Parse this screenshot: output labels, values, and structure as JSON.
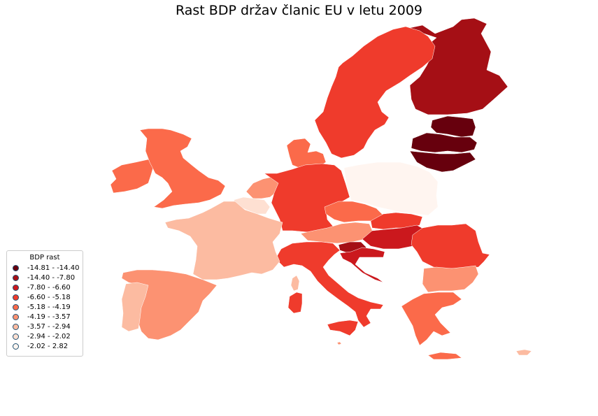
{
  "title": "Rast BDP držav članic EU v letu 2009",
  "legend": {
    "title": "BDP rast",
    "items": [
      {
        "label": "-14.81 - -14.40",
        "color": "#67000d"
      },
      {
        "label": "-14.40 - -7.80",
        "color": "#a50f15"
      },
      {
        "label": "-7.80 - -6.60",
        "color": "#cb181d"
      },
      {
        "label": "-6.60 - -5.18",
        "color": "#ef3b2c"
      },
      {
        "label": "-5.18 - -4.19",
        "color": "#fb6a4a"
      },
      {
        "label": "-4.19 - -3.57",
        "color": "#fc9272"
      },
      {
        "label": "-3.57 - -2.94",
        "color": "#fcbba1"
      },
      {
        "label": "-2.94 - -2.02",
        "color": "#fee0d2"
      },
      {
        "label": "-2.02 - 2.82",
        "color": "#fff5f0"
      }
    ]
  },
  "regions": [
    {
      "name": "finland",
      "color": "#a50f15"
    },
    {
      "name": "sweden",
      "color": "#ef3b2c"
    },
    {
      "name": "estonia",
      "color": "#67000d"
    },
    {
      "name": "latvia",
      "color": "#67000d"
    },
    {
      "name": "lithuania",
      "color": "#67000d"
    },
    {
      "name": "denmark",
      "color": "#fb6a4a"
    },
    {
      "name": "ireland",
      "color": "#fb6a4a"
    },
    {
      "name": "united-kingdom",
      "color": "#fb6a4a"
    },
    {
      "name": "netherlands",
      "color": "#fc9272"
    },
    {
      "name": "belgium",
      "color": "#fee0d2"
    },
    {
      "name": "germany",
      "color": "#ef3b2c"
    },
    {
      "name": "poland",
      "color": "#fff5f0"
    },
    {
      "name": "czechia",
      "color": "#fb6a4a"
    },
    {
      "name": "slovakia",
      "color": "#ef3b2c"
    },
    {
      "name": "austria",
      "color": "#fc9272"
    },
    {
      "name": "hungary",
      "color": "#cb181d"
    },
    {
      "name": "slovenia",
      "color": "#a50f15"
    },
    {
      "name": "croatia",
      "color": "#cb181d"
    },
    {
      "name": "romania",
      "color": "#ef3b2c"
    },
    {
      "name": "bulgaria",
      "color": "#fc9272"
    },
    {
      "name": "greece",
      "color": "#fb6a4a"
    },
    {
      "name": "italy",
      "color": "#ef3b2c"
    },
    {
      "name": "sardinia",
      "color": "#ef3b2c"
    },
    {
      "name": "sicily",
      "color": "#ef3b2c"
    },
    {
      "name": "corsica",
      "color": "#fcbba1"
    },
    {
      "name": "france",
      "color": "#fcbba1"
    },
    {
      "name": "spain",
      "color": "#fc9272"
    },
    {
      "name": "portugal",
      "color": "#fcbba1"
    },
    {
      "name": "cyprus",
      "color": "#fcbba1"
    },
    {
      "name": "malta",
      "color": "#fc9272"
    }
  ]
}
